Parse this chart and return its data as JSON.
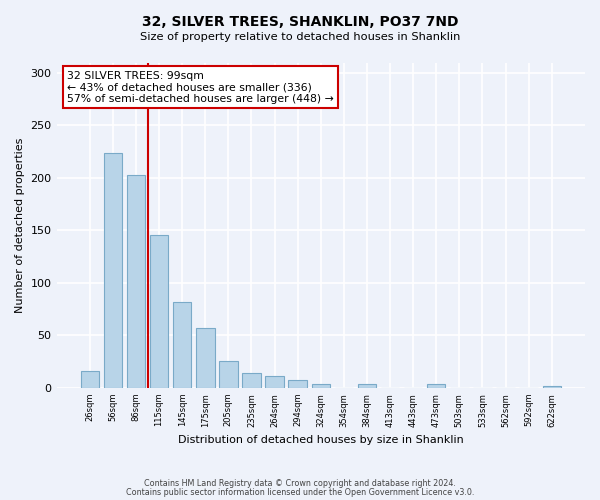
{
  "title": "32, SILVER TREES, SHANKLIN, PO37 7ND",
  "subtitle": "Size of property relative to detached houses in Shanklin",
  "xlabel": "Distribution of detached houses by size in Shanklin",
  "ylabel": "Number of detached properties",
  "bar_labels": [
    "26sqm",
    "56sqm",
    "86sqm",
    "115sqm",
    "145sqm",
    "175sqm",
    "205sqm",
    "235sqm",
    "264sqm",
    "294sqm",
    "324sqm",
    "354sqm",
    "384sqm",
    "413sqm",
    "443sqm",
    "473sqm",
    "503sqm",
    "533sqm",
    "562sqm",
    "592sqm",
    "622sqm"
  ],
  "bar_values": [
    16,
    224,
    203,
    146,
    82,
    57,
    26,
    14,
    11,
    8,
    4,
    0,
    4,
    0,
    0,
    4,
    0,
    0,
    0,
    0,
    2
  ],
  "bar_color": "#b8d4e8",
  "bar_edge_color": "#7aaac8",
  "marker_line_color": "#cc0000",
  "annotation_title": "32 SILVER TREES: 99sqm",
  "annotation_line1": "← 43% of detached houses are smaller (336)",
  "annotation_line2": "57% of semi-detached houses are larger (448) →",
  "annotation_box_color": "#ffffff",
  "annotation_box_edge": "#cc0000",
  "ylim": [
    0,
    310
  ],
  "yticks": [
    0,
    50,
    100,
    150,
    200,
    250,
    300
  ],
  "footer1": "Contains HM Land Registry data © Crown copyright and database right 2024.",
  "footer2": "Contains public sector information licensed under the Open Government Licence v3.0.",
  "bg_color": "#eef2fa"
}
